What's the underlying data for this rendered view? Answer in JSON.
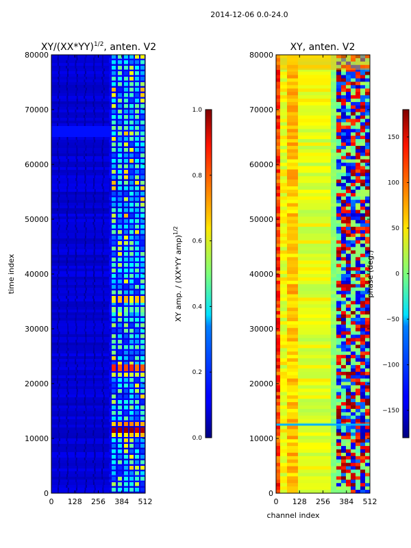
{
  "figure": {
    "suptitle": "2014-12-06 0.0-24.0"
  },
  "chart_data": [
    {
      "type": "heatmap",
      "title": "XY/(XX*YY)^{1/2}, anten. V2",
      "title_main": "XY/(XX*YY)",
      "title_sup": "1/2",
      "title_tail": ", anten. V2",
      "xlabel": "",
      "ylabel": "time index",
      "xlim": [
        0,
        512
      ],
      "ylim": [
        0,
        80000
      ],
      "xticks": [
        0,
        128,
        256,
        384,
        512
      ],
      "yticks": [
        0,
        10000,
        20000,
        30000,
        40000,
        50000,
        60000,
        70000,
        80000
      ],
      "colormap": "jet",
      "colorbar": {
        "label": "XY amp. / (XX*YY amp)^{1/2}",
        "label_main": "XY amp. / (XX*YY amp)",
        "label_sup": "1/2",
        "range": [
          0.0,
          1.0
        ],
        "ticks": [
          "0.0",
          "0.2",
          "0.4",
          "0.6",
          "0.8",
          "1.0"
        ],
        "tick_values": [
          0.0,
          0.2,
          0.4,
          0.6,
          0.8,
          1.0
        ]
      }
    },
    {
      "type": "heatmap",
      "title": "XY, anten. V2",
      "xlabel": "channel index",
      "ylabel": "",
      "xlim": [
        0,
        512
      ],
      "ylim": [
        0,
        80000
      ],
      "xticks": [
        0,
        128,
        256,
        384,
        512
      ],
      "yticks": [
        0,
        10000,
        20000,
        30000,
        40000,
        50000,
        60000,
        70000,
        80000
      ],
      "colormap": "jet",
      "colorbar": {
        "label": "phase (deg.)",
        "range": [
          -180,
          180
        ],
        "ticks": [
          "−150",
          "−100",
          "−50",
          "0",
          "50",
          "100",
          "150"
        ],
        "tick_values": [
          -150,
          -100,
          -50,
          0,
          50,
          100,
          150
        ]
      }
    }
  ]
}
